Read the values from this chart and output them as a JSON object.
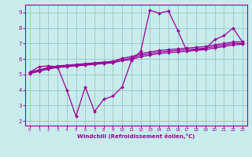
{
  "bg_color": "#c8ecec",
  "grid_color": "#a0c8c8",
  "line_color": "#990099",
  "marker_color": "#990099",
  "xlabel": "Windchill (Refroidissement éolien,°C)",
  "xlabel_color": "#990099",
  "tick_color": "#990099",
  "spine_color": "#990099",
  "xlim": [
    -0.5,
    23.5
  ],
  "ylim": [
    1.7,
    9.5
  ],
  "yticks": [
    2,
    3,
    4,
    5,
    6,
    7,
    8,
    9
  ],
  "xticks": [
    0,
    1,
    2,
    3,
    4,
    5,
    6,
    7,
    8,
    9,
    10,
    11,
    12,
    13,
    14,
    15,
    16,
    17,
    18,
    19,
    20,
    21,
    22,
    23
  ],
  "series1_x": [
    0,
    1,
    2,
    3,
    4,
    5,
    6,
    7,
    8,
    9,
    10,
    11,
    12,
    13,
    14,
    15,
    16,
    17,
    18,
    19,
    20,
    21,
    22,
    23
  ],
  "series1_y": [
    5.15,
    5.5,
    5.55,
    5.5,
    4.0,
    2.3,
    4.2,
    2.6,
    3.4,
    3.6,
    4.2,
    5.9,
    6.5,
    9.15,
    8.95,
    9.1,
    7.85,
    6.5,
    6.6,
    6.65,
    7.25,
    7.5,
    8.0,
    7.1
  ],
  "series2_x": [
    0,
    1,
    2,
    3,
    4,
    5,
    6,
    7,
    8,
    9,
    10,
    11,
    12,
    13,
    14,
    15,
    16,
    17,
    18,
    19,
    20,
    21,
    22,
    23
  ],
  "series2_y": [
    5.15,
    5.3,
    5.45,
    5.55,
    5.6,
    5.65,
    5.7,
    5.75,
    5.8,
    5.85,
    6.05,
    6.15,
    6.35,
    6.45,
    6.55,
    6.6,
    6.65,
    6.7,
    6.75,
    6.8,
    6.9,
    7.0,
    7.1,
    7.1
  ],
  "series3_x": [
    0,
    1,
    2,
    3,
    4,
    5,
    6,
    7,
    8,
    9,
    10,
    11,
    12,
    13,
    14,
    15,
    16,
    17,
    18,
    19,
    20,
    21,
    22,
    23
  ],
  "series3_y": [
    5.1,
    5.25,
    5.4,
    5.5,
    5.55,
    5.6,
    5.65,
    5.7,
    5.75,
    5.8,
    5.95,
    6.05,
    6.25,
    6.35,
    6.45,
    6.5,
    6.55,
    6.6,
    6.65,
    6.7,
    6.8,
    6.9,
    7.0,
    7.0
  ],
  "series4_x": [
    0,
    1,
    2,
    3,
    4,
    5,
    6,
    7,
    8,
    9,
    10,
    11,
    12,
    13,
    14,
    15,
    16,
    17,
    18,
    19,
    20,
    21,
    22,
    23
  ],
  "series4_y": [
    5.05,
    5.2,
    5.35,
    5.45,
    5.5,
    5.55,
    5.6,
    5.65,
    5.7,
    5.75,
    5.9,
    5.95,
    6.15,
    6.25,
    6.35,
    6.4,
    6.45,
    6.5,
    6.55,
    6.6,
    6.7,
    6.8,
    6.9,
    6.95
  ]
}
